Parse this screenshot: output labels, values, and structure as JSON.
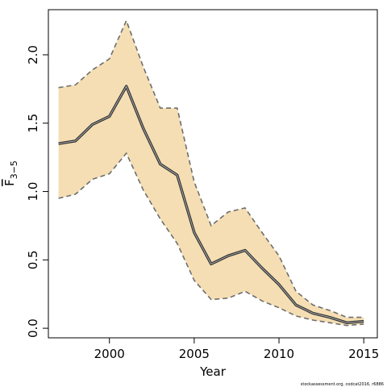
{
  "chart_data": {
    "type": "line",
    "xlabel": "Year",
    "ylabel": {
      "main": "F",
      "subscript": "3−5"
    },
    "xlim": [
      1996.4,
      2015.8
    ],
    "ylim": [
      -0.07,
      2.33
    ],
    "x_ticks": [
      2000,
      2005,
      2010,
      2015
    ],
    "x_tick_labels": [
      "2000",
      "2005",
      "2010",
      "2015"
    ],
    "y_ticks": [
      0.0,
      0.5,
      1.0,
      1.5,
      2.0
    ],
    "y_tick_labels": [
      "0.0",
      "0.5",
      "1.0",
      "1.5",
      "2.0"
    ],
    "grid": false,
    "legend": "none",
    "series": [
      {
        "role": "estimate",
        "x": [
          1997,
          1998,
          1999,
          2000,
          2001,
          2002,
          2003,
          2004,
          2005,
          2006,
          2007,
          2008,
          2009,
          2010,
          2011,
          2012,
          2013,
          2014,
          2015
        ],
        "values": [
          1.35,
          1.37,
          1.49,
          1.55,
          1.77,
          1.46,
          1.2,
          1.12,
          0.7,
          0.47,
          0.53,
          0.57,
          0.44,
          0.32,
          0.17,
          0.11,
          0.08,
          0.04,
          0.05
        ]
      },
      {
        "role": "upper",
        "x": [
          1997,
          1998,
          1999,
          2000,
          2001,
          2002,
          2003,
          2004,
          2005,
          2006,
          2007,
          2008,
          2009,
          2010,
          2011,
          2012,
          2013,
          2014,
          2015
        ],
        "values": [
          1.76,
          1.78,
          1.89,
          1.97,
          2.25,
          1.91,
          1.61,
          1.61,
          1.07,
          0.75,
          0.85,
          0.88,
          0.7,
          0.53,
          0.27,
          0.17,
          0.13,
          0.08,
          0.08
        ]
      },
      {
        "role": "lower",
        "x": [
          1997,
          1998,
          1999,
          2000,
          2001,
          2002,
          2003,
          2004,
          2005,
          2006,
          2007,
          2008,
          2009,
          2010,
          2011,
          2012,
          2013,
          2014,
          2015
        ],
        "values": [
          0.95,
          0.98,
          1.09,
          1.13,
          1.28,
          1.01,
          0.8,
          0.62,
          0.35,
          0.21,
          0.22,
          0.27,
          0.2,
          0.15,
          0.09,
          0.06,
          0.04,
          0.02,
          0.03
        ]
      }
    ],
    "colors": {
      "band": "#f5deb3",
      "bound_line": "#6e6e6e",
      "estimate_outer": "#333333",
      "estimate_inner": "#aaaaaa",
      "frame": "#000000"
    },
    "credit": "stockassessment.org, codcat2016, r6886"
  }
}
